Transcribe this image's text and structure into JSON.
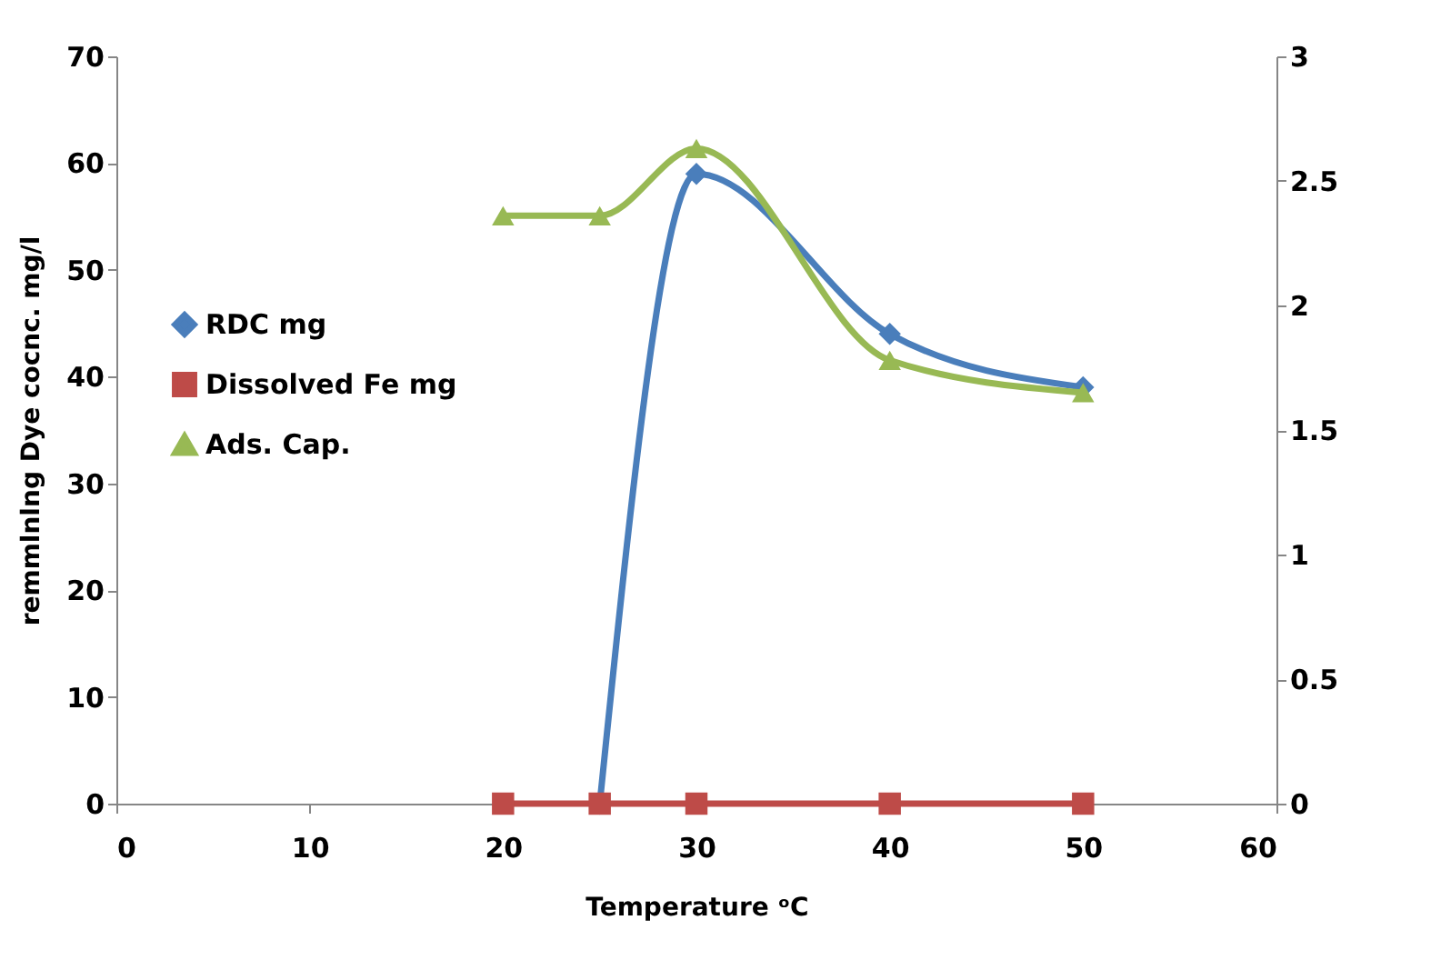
{
  "chart_data": {
    "type": "line",
    "xlabel": "Temperature ᵒC",
    "ylabel": "remmlnlng Dye cocnc. mg/l",
    "xlim": [
      0,
      60
    ],
    "xticks": [
      0,
      10,
      20,
      30,
      40,
      50,
      60
    ],
    "ylim": [
      0,
      70
    ],
    "yticks": [
      0,
      10,
      20,
      30,
      40,
      50,
      60,
      70
    ],
    "y2lim": [
      0,
      3
    ],
    "y2ticks": [
      0,
      0.5,
      1,
      1.5,
      2,
      2.5,
      3
    ],
    "legend": "left",
    "grid": false,
    "series": [
      {
        "name": "RDC mg",
        "color": "#4a7ebb",
        "marker": "diamond",
        "x": [
          25,
          30,
          40,
          50
        ],
        "values": [
          0,
          59,
          44,
          39
        ]
      },
      {
        "name": "Dissolved Fe mg",
        "color": "#be4b48",
        "marker": "square",
        "x": [
          20,
          25,
          30,
          40,
          50
        ],
        "values": [
          0,
          0,
          0,
          0,
          0
        ]
      },
      {
        "name": "Ads. Cap.",
        "color": "#98b954",
        "marker": "triangle",
        "axis": "y2",
        "x": [
          20,
          25,
          30,
          40,
          50
        ],
        "values": [
          2.36,
          2.36,
          2.63,
          1.78,
          1.65
        ]
      }
    ]
  }
}
